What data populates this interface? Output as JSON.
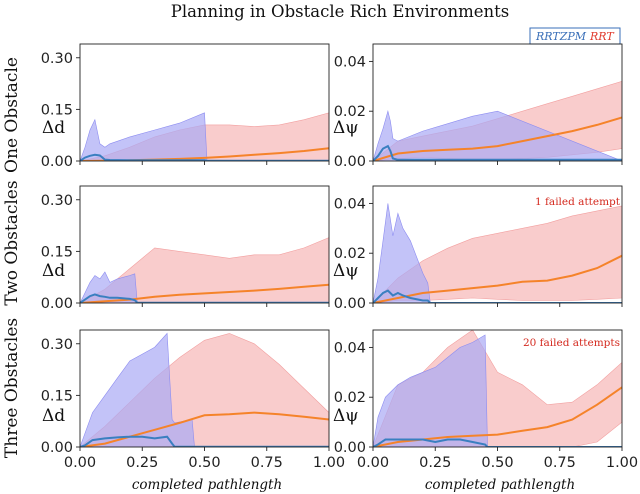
{
  "figure": {
    "title": "Planning in Obstacle Rich Environments",
    "xlabel": "completed pathlength",
    "row_labels": [
      "One Obstacle",
      "Two Obstacles",
      "Three Obstacles"
    ],
    "ylabel_d": "Δd",
    "ylabel_psi": "Δψ",
    "x_ticks": [
      "0.00",
      "0.25",
      "0.50",
      "0.75",
      "1.00"
    ],
    "legend": [
      {
        "label": "RRTZPM",
        "color": "#3a6fb8"
      },
      {
        "label": "RRT",
        "color": "#e03b2e"
      }
    ],
    "colors": {
      "rrtzpm_line": "#3a7fc0",
      "rrtzpm_band": "#a9a9f5",
      "rrt_line": "#f5832a",
      "rrt_band": "#f6b9b9",
      "annotation": "#d42a1f"
    },
    "annotations": [
      "",
      "1 failed attempt",
      "20 failed attempts"
    ]
  },
  "chart_data": [
    {
      "id": "one-obstacle-d",
      "type": "area",
      "row": 0,
      "col": 0,
      "title": "",
      "xlabel": "",
      "ylabel": "Δd",
      "xlim": [
        0,
        1
      ],
      "ylim": [
        0,
        0.34
      ],
      "yticks": [
        "0.00",
        "0.15",
        "0.30"
      ],
      "ytick_values": [
        0,
        0.15,
        0.3
      ],
      "series": [
        {
          "name": "RRT",
          "x": [
            0,
            0.1,
            0.2,
            0.3,
            0.4,
            0.5,
            0.6,
            0.7,
            0.8,
            0.9,
            1.0
          ],
          "mean": [
            0,
            0.001,
            0.002,
            0.004,
            0.006,
            0.009,
            0.013,
            0.018,
            0.023,
            0.029,
            0.037
          ],
          "upper": [
            0,
            0.015,
            0.04,
            0.07,
            0.09,
            0.105,
            0.105,
            0.1,
            0.105,
            0.12,
            0.14
          ],
          "lower": [
            0,
            0,
            0,
            0,
            0,
            0,
            0,
            0,
            0,
            0,
            0
          ]
        },
        {
          "name": "RRTZPM",
          "x": [
            0,
            0.02,
            0.04,
            0.06,
            0.08,
            0.1,
            0.12,
            0.2,
            0.3,
            0.4,
            0.5,
            0.51,
            1.0
          ],
          "mean": [
            0,
            0.01,
            0.015,
            0.018,
            0.016,
            0.004,
            0.003,
            0.002,
            0.002,
            0.002,
            0.002,
            0.001,
            0.001
          ],
          "upper": [
            0,
            0.04,
            0.09,
            0.12,
            0.05,
            0.04,
            0.05,
            0.07,
            0.09,
            0.11,
            0.14,
            0,
            0
          ],
          "lower": [
            0,
            0,
            0,
            0,
            0,
            0,
            0,
            0,
            0,
            0,
            0,
            0,
            0
          ]
        }
      ]
    },
    {
      "id": "one-obstacle-psi",
      "type": "area",
      "row": 0,
      "col": 1,
      "title": "",
      "xlabel": "",
      "ylabel": "Δψ",
      "xlim": [
        0,
        1
      ],
      "ylim": [
        0,
        0.047
      ],
      "yticks": [
        "0.00",
        "0.02",
        "0.04"
      ],
      "ytick_values": [
        0,
        0.02,
        0.04
      ],
      "series": [
        {
          "name": "RRT",
          "x": [
            0,
            0.1,
            0.2,
            0.3,
            0.4,
            0.5,
            0.6,
            0.7,
            0.8,
            0.9,
            1.0
          ],
          "mean": [
            0,
            0.003,
            0.004,
            0.0045,
            0.005,
            0.006,
            0.008,
            0.01,
            0.012,
            0.0145,
            0.0175
          ],
          "upper": [
            0,
            0.008,
            0.01,
            0.012,
            0.014,
            0.017,
            0.02,
            0.023,
            0.026,
            0.029,
            0.032
          ],
          "lower": [
            0,
            0.001,
            0.0015,
            0.001,
            0.0005,
            0.0005,
            0.001,
            0.0015,
            0.0025,
            0.0035,
            0.005
          ]
        },
        {
          "name": "RRTZPM",
          "x": [
            0,
            0.02,
            0.04,
            0.06,
            0.07,
            0.08,
            0.1,
            0.15,
            0.2,
            0.3,
            0.4,
            0.5,
            1.0
          ],
          "mean": [
            0,
            0.002,
            0.005,
            0.006,
            0.004,
            0.001,
            0.0005,
            0.0005,
            0.0005,
            0.0005,
            0.0005,
            0.0005,
            0.0005
          ],
          "upper": [
            0,
            0.007,
            0.013,
            0.02,
            0.016,
            0.009,
            0.008,
            0.01,
            0.012,
            0.015,
            0.018,
            0.02,
            0.0
          ],
          "lower": [
            0,
            0,
            0,
            0,
            0,
            0,
            0,
            0,
            0,
            0,
            0,
            0,
            0
          ]
        }
      ]
    },
    {
      "id": "two-obstacles-d",
      "type": "area",
      "row": 1,
      "col": 0,
      "title": "",
      "xlabel": "",
      "ylabel": "Δd",
      "xlim": [
        0,
        1
      ],
      "ylim": [
        0,
        0.34
      ],
      "yticks": [
        "0.00",
        "0.15",
        "0.30"
      ],
      "ytick_values": [
        0,
        0.15,
        0.3
      ],
      "series": [
        {
          "name": "RRT",
          "x": [
            0,
            0.1,
            0.2,
            0.3,
            0.4,
            0.5,
            0.6,
            0.7,
            0.8,
            0.9,
            1.0
          ],
          "mean": [
            0,
            0.005,
            0.01,
            0.018,
            0.024,
            0.028,
            0.032,
            0.036,
            0.041,
            0.047,
            0.053
          ],
          "upper": [
            0,
            0.04,
            0.1,
            0.16,
            0.15,
            0.14,
            0.13,
            0.14,
            0.14,
            0.16,
            0.19
          ],
          "lower": [
            0,
            0,
            0,
            0,
            0,
            0,
            0,
            0,
            0,
            0,
            0
          ]
        },
        {
          "name": "RRTZPM",
          "x": [
            0,
            0.02,
            0.04,
            0.06,
            0.08,
            0.1,
            0.12,
            0.15,
            0.2,
            0.22,
            0.23,
            1.0
          ],
          "mean": [
            0,
            0.01,
            0.02,
            0.025,
            0.02,
            0.018,
            0.015,
            0.015,
            0.012,
            0.008,
            0.001,
            0.001
          ],
          "upper": [
            0,
            0.03,
            0.06,
            0.08,
            0.07,
            0.09,
            0.06,
            0.07,
            0.08,
            0.085,
            0,
            0
          ],
          "lower": [
            0,
            0,
            0,
            0,
            0,
            0,
            0,
            0,
            0,
            0,
            0,
            0
          ]
        }
      ]
    },
    {
      "id": "two-obstacles-psi",
      "type": "area",
      "row": 1,
      "col": 1,
      "title": "",
      "xlabel": "",
      "ylabel": "Δψ",
      "xlim": [
        0,
        1
      ],
      "ylim": [
        0,
        0.047
      ],
      "yticks": [
        "0.00",
        "0.02",
        "0.04"
      ],
      "ytick_values": [
        0,
        0.02,
        0.04
      ],
      "series": [
        {
          "name": "RRT",
          "x": [
            0,
            0.1,
            0.2,
            0.3,
            0.4,
            0.5,
            0.6,
            0.7,
            0.8,
            0.9,
            1.0
          ],
          "mean": [
            0,
            0.002,
            0.004,
            0.005,
            0.006,
            0.007,
            0.0085,
            0.009,
            0.011,
            0.014,
            0.019
          ],
          "upper": [
            0,
            0.01,
            0.017,
            0.022,
            0.026,
            0.028,
            0.03,
            0.032,
            0.035,
            0.037,
            0.039
          ],
          "lower": [
            0,
            0.001,
            0.001,
            0.0015,
            0.002,
            0.0015,
            0.001,
            0.001,
            0.001,
            0.0015,
            0.002
          ]
        },
        {
          "name": "RRTZPM",
          "x": [
            0,
            0.02,
            0.04,
            0.06,
            0.08,
            0.1,
            0.12,
            0.15,
            0.2,
            0.22,
            0.23,
            1.0
          ],
          "mean": [
            0,
            0.002,
            0.004,
            0.005,
            0.003,
            0.004,
            0.003,
            0.002,
            0.001,
            0.001,
            0.0,
            0.0
          ],
          "upper": [
            0,
            0.01,
            0.025,
            0.04,
            0.027,
            0.036,
            0.03,
            0.025,
            0.012,
            0.008,
            0,
            0
          ],
          "lower": [
            0,
            0,
            0,
            0,
            0,
            0,
            0,
            0,
            0,
            0,
            0,
            0
          ]
        }
      ]
    },
    {
      "id": "three-obstacles-d",
      "type": "area",
      "row": 2,
      "col": 0,
      "title": "",
      "xlabel": "",
      "ylabel": "Δd",
      "xlim": [
        0,
        1
      ],
      "ylim": [
        0,
        0.34
      ],
      "yticks": [
        "0.00",
        "0.15",
        "0.30"
      ],
      "ytick_values": [
        0,
        0.15,
        0.3
      ],
      "series": [
        {
          "name": "RRT",
          "x": [
            0,
            0.1,
            0.2,
            0.3,
            0.4,
            0.5,
            0.6,
            0.7,
            0.8,
            0.9,
            1.0
          ],
          "mean": [
            0,
            0.01,
            0.03,
            0.05,
            0.07,
            0.092,
            0.095,
            0.1,
            0.095,
            0.088,
            0.08
          ],
          "upper": [
            0,
            0.06,
            0.13,
            0.2,
            0.26,
            0.31,
            0.33,
            0.3,
            0.24,
            0.17,
            0.1
          ],
          "lower": [
            0,
            0,
            0,
            0,
            0,
            0,
            0,
            0,
            0,
            0,
            0
          ]
        },
        {
          "name": "RRTZPM",
          "x": [
            0,
            0.02,
            0.05,
            0.1,
            0.15,
            0.2,
            0.25,
            0.3,
            0.35,
            0.37,
            0.38,
            0.45,
            0.46,
            1.0
          ],
          "mean": [
            0,
            0.005,
            0.02,
            0.025,
            0.028,
            0.03,
            0.03,
            0.025,
            0.03,
            0.01,
            0.001,
            0.001,
            0.001,
            0.001
          ],
          "upper": [
            0,
            0.04,
            0.1,
            0.15,
            0.2,
            0.25,
            0.27,
            0.29,
            0.33,
            0.08,
            0.07,
            0.08,
            0,
            0
          ],
          "lower": [
            0,
            0,
            0,
            0,
            0,
            0,
            0,
            0,
            0,
            0,
            0,
            0,
            0,
            0
          ]
        }
      ]
    },
    {
      "id": "three-obstacles-psi",
      "type": "area",
      "row": 2,
      "col": 1,
      "title": "",
      "xlabel": "",
      "ylabel": "Δψ",
      "xlim": [
        0,
        1
      ],
      "ylim": [
        0,
        0.047
      ],
      "yticks": [
        "0.00",
        "0.02",
        "0.04"
      ],
      "ytick_values": [
        0,
        0.02,
        0.04
      ],
      "series": [
        {
          "name": "RRT",
          "x": [
            0,
            0.1,
            0.2,
            0.3,
            0.4,
            0.5,
            0.6,
            0.7,
            0.8,
            0.9,
            1.0
          ],
          "mean": [
            0,
            0.002,
            0.003,
            0.004,
            0.0045,
            0.005,
            0.0065,
            0.008,
            0.011,
            0.017,
            0.024
          ],
          "upper": [
            0,
            0.025,
            0.03,
            0.04,
            0.049,
            0.03,
            0.025,
            0.017,
            0.018,
            0.025,
            0.034
          ],
          "lower": [
            0,
            0,
            0,
            0,
            0,
            0,
            0,
            0,
            0,
            0.002,
            0.01
          ]
        },
        {
          "name": "RRTZPM",
          "x": [
            0,
            0.02,
            0.05,
            0.1,
            0.15,
            0.2,
            0.25,
            0.3,
            0.35,
            0.4,
            0.45,
            0.46,
            1.0
          ],
          "mean": [
            0,
            0.001,
            0.003,
            0.003,
            0.003,
            0.003,
            0.002,
            0.003,
            0.003,
            0.002,
            0.001,
            0.0,
            0.0
          ],
          "upper": [
            0,
            0.012,
            0.02,
            0.025,
            0.028,
            0.03,
            0.032,
            0.036,
            0.04,
            0.042,
            0.045,
            0,
            0
          ],
          "lower": [
            0,
            0,
            0,
            0,
            0,
            0,
            0,
            0,
            0,
            0,
            0,
            0,
            0
          ]
        }
      ]
    }
  ]
}
